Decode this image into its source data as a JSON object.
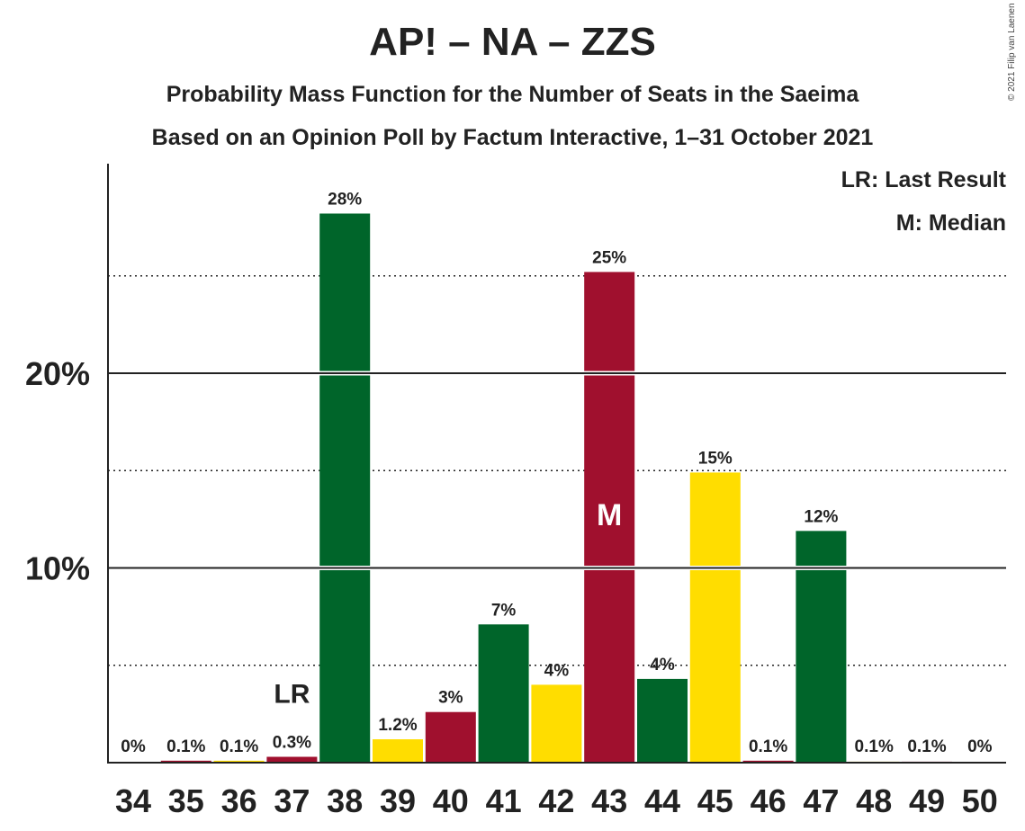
{
  "title": "AP! – NA – ZZS",
  "subtitle": "Probability Mass Function for the Number of Seats in the Saeima",
  "subtitle2": "Based on an Opinion Poll by Factum Interactive, 1–31 October 2021",
  "copyright": "© 2021 Filip van Laenen",
  "legend": {
    "last_result": "LR: Last Result",
    "median": "M: Median"
  },
  "colors": {
    "green": "#00652A",
    "crimson": "#A0102E",
    "yellow": "#FFDD00"
  },
  "chart_data": {
    "type": "bar",
    "categories": [
      "34",
      "35",
      "36",
      "37",
      "38",
      "39",
      "40",
      "41",
      "42",
      "43",
      "44",
      "45",
      "46",
      "47",
      "48",
      "49",
      "50"
    ],
    "values": [
      0,
      0.1,
      0.1,
      0.3,
      28.2,
      1.2,
      2.6,
      7.1,
      4.0,
      25.2,
      4.3,
      14.9,
      0.1,
      11.9,
      0.05,
      0.05,
      0
    ],
    "data_labels": [
      "0%",
      "0.1%",
      "0.1%",
      "0.3%",
      "28%",
      "1.2%",
      "3%",
      "7%",
      "4%",
      "25%",
      "4%",
      "15%",
      "0.1%",
      "12%",
      "0.1%",
      "0.1%",
      "0%"
    ],
    "bar_colors": [
      "green",
      "crimson",
      "yellow",
      "crimson",
      "green",
      "yellow",
      "crimson",
      "green",
      "yellow",
      "crimson",
      "green",
      "yellow",
      "crimson",
      "green",
      "yellow",
      "crimson",
      "green"
    ],
    "ylim": [
      0,
      30
    ],
    "major_ticks": [
      10,
      20
    ],
    "major_tick_labels": [
      "10%",
      "20%"
    ],
    "minor_gridlines": [
      5,
      15,
      25
    ],
    "last_result_category": "37",
    "last_result_label": "LR",
    "median_category": "43",
    "median_label": "M",
    "legend_position": "top-right"
  }
}
